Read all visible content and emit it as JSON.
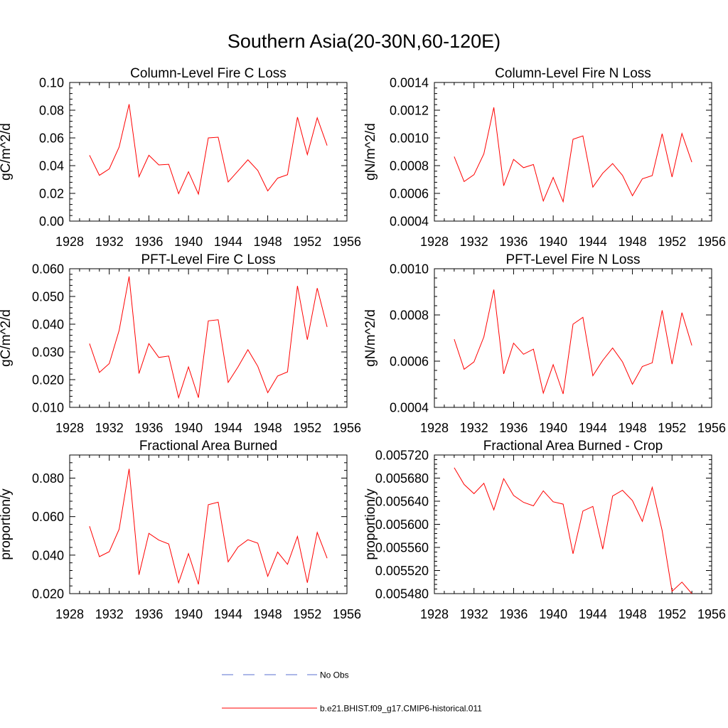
{
  "figure_title": "Southern Asia(20-30N,60-120E)",
  "colors": {
    "model": "#ff0000",
    "obs": "#5a6fd0",
    "axis": "#000000"
  },
  "legend": [
    {
      "label": "No Obs",
      "style": "dashed",
      "color": "#5a6fd0"
    },
    {
      "label": "b.e21.BHIST.f09_g17.CMIP6-historical.011",
      "style": "solid",
      "color": "#ff0000"
    }
  ],
  "chart_data": [
    {
      "type": "line",
      "title": "Column-Level Fire C Loss",
      "ylabel": "gC/m^2/d",
      "xlim": [
        1928,
        1956
      ],
      "xticks": [
        1928,
        1932,
        1936,
        1940,
        1944,
        1948,
        1952,
        1956
      ],
      "ylim": [
        0,
        0.1
      ],
      "yticks": [
        0,
        0.02,
        0.04,
        0.06,
        0.08,
        0.1
      ],
      "ytick_labels": [
        "0.00",
        "0.02",
        "0.04",
        "0.06",
        "0.08",
        "0.10"
      ],
      "x": [
        1930,
        1931,
        1932,
        1933,
        1934,
        1935,
        1936,
        1937,
        1938,
        1939,
        1940,
        1941,
        1942,
        1943,
        1944,
        1945,
        1946,
        1947,
        1948,
        1949,
        1950,
        1951,
        1952,
        1953,
        1954
      ],
      "series": [
        {
          "name": "b.e21.BHIST.f09_g17.CMIP6-historical.011",
          "values": [
            0.0475,
            0.033,
            0.0377,
            0.0535,
            0.0843,
            0.032,
            0.0475,
            0.0405,
            0.041,
            0.0198,
            0.0356,
            0.0195,
            0.06,
            0.0605,
            0.0282,
            0.0362,
            0.0442,
            0.0365,
            0.0218,
            0.031,
            0.0335,
            0.075,
            0.048,
            0.0745,
            0.0545
          ]
        }
      ]
    },
    {
      "type": "line",
      "title": "Column-Level Fire N Loss",
      "ylabel": "gN/m^2/d",
      "xlim": [
        1928,
        1956
      ],
      "xticks": [
        1928,
        1932,
        1936,
        1940,
        1944,
        1948,
        1952,
        1956
      ],
      "ylim": [
        0.0004,
        0.0014
      ],
      "yticks": [
        0.0004,
        0.0006,
        0.0008,
        0.001,
        0.0012,
        0.0014
      ],
      "ytick_labels": [
        "0.0004",
        "0.0006",
        "0.0008",
        "0.0010",
        "0.0012",
        "0.0014"
      ],
      "x": [
        1930,
        1931,
        1932,
        1933,
        1934,
        1935,
        1936,
        1937,
        1938,
        1939,
        1940,
        1941,
        1942,
        1943,
        1944,
        1945,
        1946,
        1947,
        1948,
        1949,
        1950,
        1951,
        1952,
        1953,
        1954
      ],
      "series": [
        {
          "name": "b.e21.BHIST.f09_g17.CMIP6-historical.011",
          "values": [
            0.000865,
            0.000685,
            0.000735,
            0.000885,
            0.00122,
            0.000655,
            0.000845,
            0.000785,
            0.000808,
            0.000545,
            0.000715,
            0.00054,
            0.00099,
            0.001015,
            0.000645,
            0.000745,
            0.000815,
            0.00073,
            0.000583,
            0.000705,
            0.000728,
            0.00103,
            0.000718,
            0.001032,
            0.000825
          ]
        }
      ]
    },
    {
      "type": "line",
      "title": "PFT-Level Fire C Loss",
      "ylabel": "gC/m^2/d",
      "xlim": [
        1928,
        1956
      ],
      "xticks": [
        1928,
        1932,
        1936,
        1940,
        1944,
        1948,
        1952,
        1956
      ],
      "ylim": [
        0.01,
        0.06
      ],
      "yticks": [
        0.01,
        0.02,
        0.03,
        0.04,
        0.05,
        0.06
      ],
      "ytick_labels": [
        "0.010",
        "0.020",
        "0.030",
        "0.040",
        "0.050",
        "0.060"
      ],
      "x": [
        1930,
        1931,
        1932,
        1933,
        1934,
        1935,
        1936,
        1937,
        1938,
        1939,
        1940,
        1941,
        1942,
        1943,
        1944,
        1945,
        1946,
        1947,
        1948,
        1949,
        1950,
        1951,
        1952,
        1953,
        1954
      ],
      "series": [
        {
          "name": "b.e21.BHIST.f09_g17.CMIP6-historical.011",
          "values": [
            0.033,
            0.0226,
            0.0258,
            0.0378,
            0.0572,
            0.0222,
            0.033,
            0.028,
            0.0285,
            0.0135,
            0.0246,
            0.0135,
            0.0412,
            0.0416,
            0.019,
            0.0246,
            0.0308,
            0.0248,
            0.0153,
            0.0213,
            0.0228,
            0.0538,
            0.0344,
            0.053,
            0.039
          ]
        }
      ]
    },
    {
      "type": "line",
      "title": "PFT-Level Fire N Loss",
      "ylabel": "gN/m^2/d",
      "xlim": [
        1928,
        1956
      ],
      "xticks": [
        1928,
        1932,
        1936,
        1940,
        1944,
        1948,
        1952,
        1956
      ],
      "ylim": [
        0.0004,
        0.001
      ],
      "yticks": [
        0.0004,
        0.0006,
        0.0008,
        0.001
      ],
      "ytick_labels": [
        "0.0004",
        "0.0006",
        "0.0008",
        "0.0010"
      ],
      "x": [
        1930,
        1931,
        1932,
        1933,
        1934,
        1935,
        1936,
        1937,
        1938,
        1939,
        1940,
        1941,
        1942,
        1943,
        1944,
        1945,
        1946,
        1947,
        1948,
        1949,
        1950,
        1951,
        1952,
        1953,
        1954
      ],
      "series": [
        {
          "name": "b.e21.BHIST.f09_g17.CMIP6-historical.011",
          "values": [
            0.000695,
            0.000565,
            0.000597,
            0.000705,
            0.00091,
            0.000545,
            0.000678,
            0.00063,
            0.000652,
            0.000462,
            0.000585,
            0.000458,
            0.00076,
            0.00079,
            0.000537,
            0.000603,
            0.000657,
            0.000597,
            0.0005,
            0.000577,
            0.000593,
            0.00082,
            0.000587,
            0.00081,
            0.000668
          ]
        }
      ]
    },
    {
      "type": "line",
      "title": "Fractional Area Burned",
      "ylabel": "proportion/y",
      "xlim": [
        1928,
        1956
      ],
      "xticks": [
        1928,
        1932,
        1936,
        1940,
        1944,
        1948,
        1952,
        1956
      ],
      "ylim": [
        0.02,
        0.092
      ],
      "yticks": [
        0.02,
        0.04,
        0.06,
        0.08
      ],
      "ytick_labels": [
        "0.020",
        "0.040",
        "0.060",
        "0.080"
      ],
      "x": [
        1930,
        1931,
        1932,
        1933,
        1934,
        1935,
        1936,
        1937,
        1938,
        1939,
        1940,
        1941,
        1942,
        1943,
        1944,
        1945,
        1946,
        1947,
        1948,
        1949,
        1950,
        1951,
        1952,
        1953,
        1954
      ],
      "series": [
        {
          "name": "b.e21.BHIST.f09_g17.CMIP6-historical.011",
          "values": [
            0.055,
            0.0392,
            0.0418,
            0.0535,
            0.0848,
            0.0298,
            0.0513,
            0.0478,
            0.0458,
            0.0256,
            0.0408,
            0.0248,
            0.0662,
            0.0675,
            0.0365,
            0.0442,
            0.048,
            0.0462,
            0.029,
            0.0416,
            0.0352,
            0.0497,
            0.0257,
            0.0518,
            0.0384
          ]
        }
      ]
    },
    {
      "type": "line",
      "title": "Fractional Area Burned - Crop",
      "ylabel": "proportion/y",
      "xlim": [
        1928,
        1956
      ],
      "xticks": [
        1928,
        1932,
        1936,
        1940,
        1944,
        1948,
        1952,
        1956
      ],
      "ylim": [
        0.00548,
        0.00572
      ],
      "yticks": [
        0.00548,
        0.00552,
        0.00556,
        0.0056,
        0.00564,
        0.00568,
        0.00572
      ],
      "ytick_labels": [
        "0.005480",
        "0.005520",
        "0.005560",
        "0.005600",
        "0.005640",
        "0.005680",
        "0.005720"
      ],
      "x": [
        1930,
        1931,
        1932,
        1933,
        1934,
        1935,
        1936,
        1937,
        1938,
        1939,
        1940,
        1941,
        1942,
        1943,
        1944,
        1945,
        1946,
        1947,
        1948,
        1949,
        1950,
        1951,
        1952,
        1953,
        1954
      ],
      "series": [
        {
          "name": "b.e21.BHIST.f09_g17.CMIP6-historical.011",
          "values": [
            0.005698,
            0.005669,
            0.005653,
            0.005671,
            0.005625,
            0.005679,
            0.00565,
            0.005638,
            0.005632,
            0.005658,
            0.005639,
            0.005635,
            0.005549,
            0.005623,
            0.005631,
            0.005557,
            0.005649,
            0.005659,
            0.005641,
            0.005605,
            0.005664,
            0.005589,
            0.005484,
            0.0055,
            0.00548
          ]
        }
      ]
    }
  ]
}
